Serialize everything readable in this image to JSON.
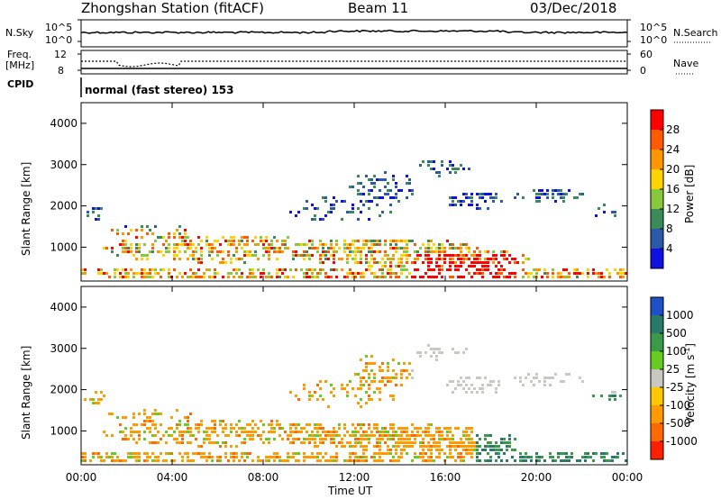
{
  "header": {
    "station": "Zhongshan Station (fitACF)",
    "beam": "Beam 11",
    "date": "03/Dec/2018"
  },
  "nsky_panel": {
    "left_label": "N.Sky",
    "left_ticks": [
      "10^5",
      "10^0"
    ],
    "right_label": "N.Search",
    "right_ticks": [
      "10^5",
      "10^0"
    ]
  },
  "freq_panel": {
    "left_label_1": "Freq.",
    "left_label_2": "[MHz]",
    "left_ticks": [
      "12",
      "8"
    ],
    "right_label": "Nave",
    "right_ticks": [
      "60",
      "0"
    ]
  },
  "cpid": {
    "label": "CPID",
    "value": "normal (fast stereo) 153"
  },
  "power_colorbar": {
    "title": "Power [dB]",
    "ticks": [
      "28",
      "24",
      "20",
      "16",
      "12",
      "8",
      "4"
    ],
    "colors": [
      "#ff0000",
      "#ff5a00",
      "#ff9600",
      "#ffd200",
      "#88c83c",
      "#3a8a5a",
      "#2a5aa8",
      "#1010e0"
    ]
  },
  "velocity_colorbar": {
    "title": "Velocity [m s",
    "title_sup": "-1",
    "title_end": "]",
    "ticks": [
      "1000",
      "500",
      "100",
      "25",
      "-25",
      "-100",
      "-500",
      "-1000"
    ],
    "colors": [
      "#1e50c8",
      "#2a7a6a",
      "#3a9a4a",
      "#66cc22",
      "#c8c8c0",
      "#ffc800",
      "#ff9a00",
      "#ff6a00",
      "#ff2000"
    ]
  },
  "chart_data": [
    {
      "type": "heatmap",
      "title": "",
      "xlabel": "Time UT",
      "ylabel": "Slant Range [km]",
      "x_ticks": [
        "00:00",
        "04:00",
        "08:00",
        "12:00",
        "16:00",
        "20:00",
        "00:00"
      ],
      "y_ticks": [
        "1000",
        "2000",
        "3000",
        "4000"
      ],
      "ylim": [
        180,
        4500
      ],
      "xlim_hours": [
        0,
        24
      ],
      "colorbar_label": "Power [dB]"
    },
    {
      "type": "heatmap",
      "title": "",
      "xlabel": "Time UT",
      "ylabel": "Slant Range [km]",
      "x_ticks": [
        "00:00",
        "04:00",
        "08:00",
        "12:00",
        "16:00",
        "20:00",
        "00:00"
      ],
      "y_ticks": [
        "1000",
        "2000",
        "3000",
        "4000"
      ],
      "ylim": [
        180,
        4500
      ],
      "xlim_hours": [
        0,
        24
      ],
      "colorbar_label": "Velocity [m s-1]"
    }
  ]
}
